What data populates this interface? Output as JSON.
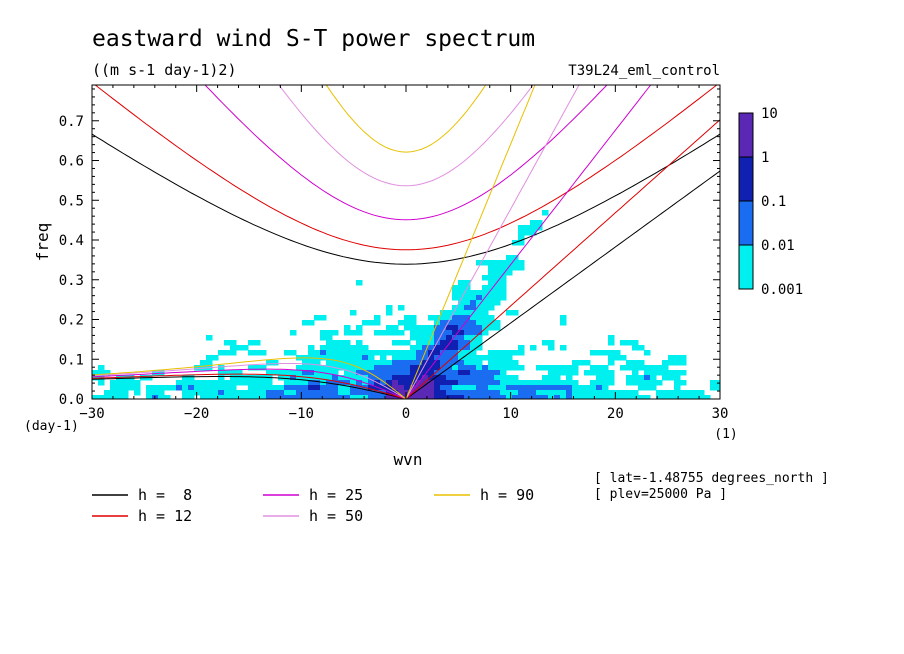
{
  "title": "eastward wind S-T power spectrum",
  "units": "((m s-1 day-1)2)",
  "experiment": "T39L24_eml_control",
  "x_axis": {
    "label": "wvn",
    "unit": "(1)",
    "min": -30,
    "max": 30,
    "ticks": [
      -30,
      -20,
      -10,
      0,
      10,
      20,
      30
    ]
  },
  "y_axis": {
    "label": "freq",
    "unit": "(day-1)",
    "min": 0,
    "max": 0.79,
    "ticks": [
      0.0,
      0.1,
      0.2,
      0.3,
      0.4,
      0.5,
      0.6,
      0.7
    ]
  },
  "colorbar": {
    "labels": [
      "10",
      "1",
      "0.1",
      "0.01",
      "0.001"
    ],
    "colors": [
      "#5a28b4",
      "#1020b0",
      "#1a6cf0",
      "#00f0f0"
    ]
  },
  "info": [
    "[ lat=-1.48755 degrees_north ]",
    "[ plev=25000 Pa ]"
  ],
  "legend": [
    {
      "label": "h =  8",
      "color": "#000000"
    },
    {
      "label": "h = 12",
      "color": "#e00000"
    },
    {
      "label": "h = 25",
      "color": "#d000d0"
    },
    {
      "label": "h = 50",
      "color": "#e090e0"
    },
    {
      "label": "h = 90",
      "color": "#e8c000"
    }
  ],
  "chart_data": {
    "type": "heatmap",
    "title": "eastward wind S-T power spectrum",
    "xlabel": "wvn",
    "ylabel": "freq",
    "xlim": [
      -30,
      30
    ],
    "ylim": [
      0,
      0.79
    ],
    "levels": [
      0.001,
      0.01,
      0.1,
      1,
      10
    ],
    "level_colors": [
      "#00f0f0",
      "#1a6cf0",
      "#1020b0",
      "#5a28b4"
    ],
    "regions": [
      {
        "level": 0.001,
        "x": [
          -30,
          30
        ],
        "y": [
          0.0,
          0.58
        ]
      },
      {
        "level": 0.01,
        "x": [
          -20,
          20
        ],
        "y": [
          0.0,
          0.35
        ]
      },
      {
        "level": 0.1,
        "x": [
          -3,
          12
        ],
        "y": [
          0.0,
          0.3
        ]
      },
      {
        "level": 1,
        "x": [
          0,
          2
        ],
        "y": [
          0.0,
          0.05
        ]
      }
    ],
    "dispersion_curves": [
      {
        "h": 8,
        "color": "#000000",
        "families": [
          "kelvin",
          "ig_n1",
          "er_n1"
        ]
      },
      {
        "h": 12,
        "color": "#e00000",
        "families": [
          "kelvin",
          "ig_n1",
          "er_n1"
        ]
      },
      {
        "h": 25,
        "color": "#d000d0",
        "families": [
          "kelvin",
          "ig_n1",
          "er_n1"
        ]
      },
      {
        "h": 50,
        "color": "#e090e0",
        "families": [
          "kelvin",
          "ig_n1",
          "er_n1"
        ]
      },
      {
        "h": 90,
        "color": "#e8c000",
        "families": [
          "kelvin",
          "ig_n1",
          "er_n1"
        ]
      }
    ]
  }
}
